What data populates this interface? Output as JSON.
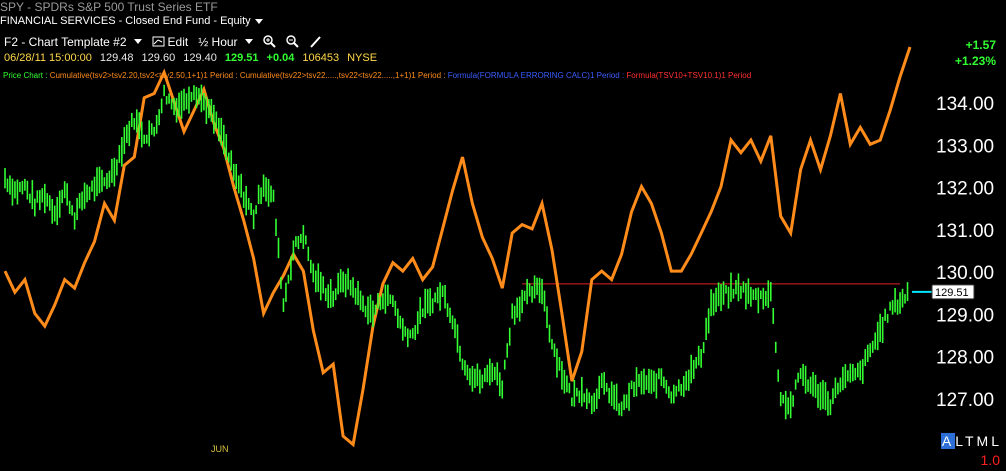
{
  "window": {
    "symbol": "SPY",
    "title": "SPDRs S&P 500 Trust Series ETF",
    "sector": "FINANCIAL SERVICES - Closed End Fund - Equity"
  },
  "toolbar": {
    "template": "F2 - Chart Template #2",
    "edit": "Edit",
    "period": "½ Hour"
  },
  "quote": {
    "datetime": "06/28/11 15:00:00",
    "open": "129.48",
    "high": "129.60",
    "low": "129.40",
    "last": "129.51",
    "change": "+0.04",
    "volume": "106453",
    "exchange": "NYSE",
    "net_change": "+1.57",
    "pct_change": "+1.23%"
  },
  "legend": {
    "price": "Price Chart :",
    "ind1": "Cumulative(tsv2>tsv2.20,tsv2<tsv2.50,1+1)1 Period :",
    "ind2": "Cumulative(tsv22>tsv22.....,tsv22<tsv22.....,1+1)1 Period :",
    "ind3": "Formula(FORMULA ERRORING CALC)1 Period :",
    "ind4": "Formula(TSV10+TSV10.1)1 Period"
  },
  "footer": {
    "modes": "ALTML",
    "active_mode": "A",
    "version": "1.0"
  },
  "colors": {
    "price": "#33ff33",
    "indicator": "#ff8c1a",
    "resistance": "#e02020",
    "background": "#000000"
  },
  "chart_data": {
    "type": "line",
    "y_axis": {
      "ticks": [
        "134.00",
        "133.00",
        "132.00",
        "131.00",
        "130.00",
        "129.00",
        "128.00",
        "127.00"
      ],
      "min": 126.0,
      "max": 135.0,
      "side": "right"
    },
    "x_labels": [
      "JUN"
    ],
    "last_price_label": "129.51",
    "horizontal_line": {
      "y": 129.7
    },
    "series": [
      {
        "role": "price",
        "x": [
          0,
          10,
          20,
          30,
          40,
          50,
          60,
          70,
          80,
          90,
          100,
          110,
          120,
          130,
          140,
          150,
          160,
          170,
          180,
          190,
          200,
          210,
          220,
          230,
          240,
          250,
          260,
          270,
          280,
          290,
          300,
          310,
          320,
          330,
          340,
          350,
          360,
          370,
          380,
          390,
          400,
          410,
          420,
          430,
          440,
          450,
          460,
          470,
          480,
          490,
          500,
          510,
          520,
          530,
          540,
          550,
          560,
          570,
          580,
          590,
          600,
          610,
          620,
          630,
          640,
          650,
          660,
          670,
          680,
          690,
          700,
          710,
          720,
          730,
          740,
          750,
          760,
          770,
          780,
          790,
          800,
          810,
          820,
          830,
          840,
          850,
          860,
          870,
          880,
          890,
          900,
          910
        ],
        "y": [
          132.2,
          131.9,
          132.0,
          131.6,
          131.8,
          131.4,
          131.9,
          131.3,
          131.8,
          132.0,
          132.1,
          132.4,
          133.1,
          133.6,
          133.2,
          133.3,
          134.2,
          133.9,
          134.0,
          134.3,
          134.0,
          133.6,
          133.1,
          132.3,
          131.8,
          131.3,
          132.1,
          131.7,
          129.2,
          130.5,
          130.9,
          129.9,
          129.6,
          129.4,
          129.8,
          129.6,
          129.2,
          129.0,
          129.4,
          129.3,
          128.6,
          128.5,
          129.1,
          129.3,
          129.5,
          128.9,
          127.9,
          127.5,
          127.4,
          127.7,
          127.3,
          129.0,
          129.3,
          129.5,
          129.6,
          128.3,
          127.6,
          127.0,
          127.2,
          126.9,
          127.3,
          127.1,
          126.7,
          127.2,
          127.4,
          127.3,
          127.5,
          127.1,
          127.3,
          127.6,
          128.0,
          129.2,
          129.4,
          129.5,
          129.6,
          129.4,
          129.4,
          129.5,
          127.0,
          126.8,
          127.6,
          127.3,
          127.1,
          126.9,
          127.4,
          127.5,
          127.6,
          128.1,
          128.6,
          129.1,
          129.3,
          129.5
        ]
      },
      {
        "role": "indicator",
        "x": [
          0,
          10,
          20,
          30,
          40,
          50,
          60,
          70,
          80,
          90,
          100,
          110,
          120,
          130,
          140,
          150,
          160,
          170,
          180,
          190,
          200,
          210,
          220,
          230,
          240,
          250,
          260,
          270,
          280,
          290,
          300,
          310,
          320,
          330,
          340,
          350,
          360,
          370,
          380,
          390,
          400,
          410,
          420,
          430,
          440,
          450,
          460,
          470,
          480,
          490,
          500,
          510,
          520,
          530,
          540,
          550,
          560,
          570,
          580,
          590,
          600,
          610,
          620,
          630,
          640,
          650,
          660,
          670,
          680,
          690,
          700,
          710,
          720,
          730,
          740,
          750,
          760,
          770,
          780,
          790,
          800,
          810,
          820,
          830,
          840,
          850,
          860,
          870,
          880,
          890,
          900,
          910
        ],
        "y": [
          130.0,
          129.5,
          129.8,
          129.0,
          128.7,
          129.2,
          129.8,
          129.6,
          130.2,
          130.7,
          131.6,
          131.2,
          132.5,
          132.7,
          134.1,
          134.2,
          134.7,
          134.0,
          133.3,
          133.8,
          134.3,
          133.5,
          132.9,
          132.0,
          131.2,
          130.3,
          129.0,
          129.5,
          129.9,
          130.4,
          130.0,
          128.6,
          127.6,
          127.8,
          126.1,
          125.9,
          127.2,
          128.7,
          129.7,
          130.2,
          130.0,
          130.3,
          129.8,
          130.1,
          131.0,
          131.9,
          132.7,
          131.6,
          130.8,
          130.3,
          129.6,
          130.9,
          131.1,
          131.0,
          131.6,
          130.5,
          129.0,
          127.4,
          128.1,
          129.8,
          130.0,
          129.8,
          130.4,
          131.4,
          132.0,
          131.6,
          130.9,
          130.0,
          130.0,
          130.4,
          130.9,
          131.4,
          132.0,
          133.1,
          132.8,
          133.1,
          132.6,
          133.2,
          131.3,
          130.9,
          132.4,
          133.1,
          132.4,
          133.2,
          134.2,
          133.0,
          133.4,
          133.0,
          133.1,
          133.8,
          134.6,
          135.3
        ]
      }
    ]
  }
}
